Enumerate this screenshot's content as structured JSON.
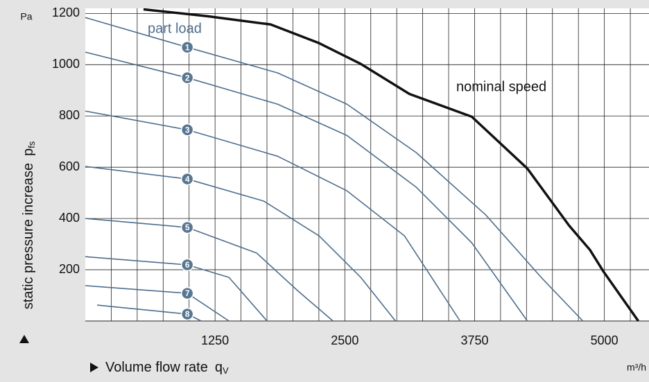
{
  "chart_data": {
    "type": "line",
    "yunit": "Pa",
    "xunit": "m³/h",
    "ylabel": "static pressure increase",
    "ylabel_symbol": "p",
    "ylabel_sub": "fs",
    "xlabel": "Volume flow rate",
    "xlabel_symbol": "q",
    "xlabel_sub": "V",
    "annotations": [
      "part load"
    ],
    "xlim": [
      0,
      5430
    ],
    "ylim": [
      0,
      1220
    ],
    "xticks": [
      1250,
      2500,
      3750,
      5000
    ],
    "x_minor_ticks": [
      250,
      500,
      750,
      1000,
      1250,
      1500,
      1750,
      2000,
      2250,
      2500,
      2750,
      3000,
      3250,
      3500,
      3750,
      4000,
      4250,
      4500,
      4750,
      5000,
      5250
    ],
    "yticks": [
      200,
      400,
      600,
      800,
      1000,
      1200
    ],
    "grid": true,
    "series": [
      {
        "name": "nominal speed",
        "color": "#111111",
        "x": [
          561,
          1183,
          1785,
          2253,
          2654,
          3122,
          3723,
          4258,
          4659,
          4860,
          4993,
          5327
        ],
        "values": [
          1216,
          1189,
          1157,
          1084,
          1003,
          886,
          797,
          595,
          373,
          278,
          192,
          0
        ]
      },
      {
        "name": "1",
        "color": "#4d6d8c",
        "x": [
          0,
          983,
          1852,
          2520,
          3188,
          3857,
          4392,
          4793
        ],
        "values": [
          1184,
          1068,
          968,
          846,
          657,
          414,
          170,
          0
        ]
      },
      {
        "name": "2",
        "color": "#4d6d8c",
        "x": [
          0,
          983,
          1852,
          2520,
          3188,
          3723,
          4258
        ],
        "values": [
          1049,
          949,
          846,
          724,
          522,
          305,
          0
        ]
      },
      {
        "name": "3",
        "color": "#4d6d8c",
        "x": [
          0,
          983,
          1852,
          2520,
          3075,
          3610
        ],
        "values": [
          819,
          746,
          643,
          508,
          332,
          0
        ]
      },
      {
        "name": "4",
        "color": "#4d6d8c",
        "x": [
          0,
          983,
          1718,
          2253,
          2654,
          2988
        ],
        "values": [
          603,
          554,
          468,
          332,
          170,
          0
        ]
      },
      {
        "name": "5",
        "color": "#4d6d8c",
        "x": [
          0,
          983,
          1651,
          2052,
          2386
        ],
        "values": [
          400,
          365,
          265,
          116,
          0
        ]
      },
      {
        "name": "6",
        "color": "#4d6d8c",
        "x": [
          0,
          983,
          1384,
          1751
        ],
        "values": [
          251,
          219,
          170,
          0
        ]
      },
      {
        "name": "7",
        "color": "#4d6d8c",
        "x": [
          0,
          983,
          1384
        ],
        "values": [
          138,
          108,
          0
        ]
      },
      {
        "name": "8",
        "color": "#4d6d8c",
        "x": [
          114,
          983,
          1116
        ],
        "values": [
          62,
          27,
          0
        ]
      }
    ]
  }
}
